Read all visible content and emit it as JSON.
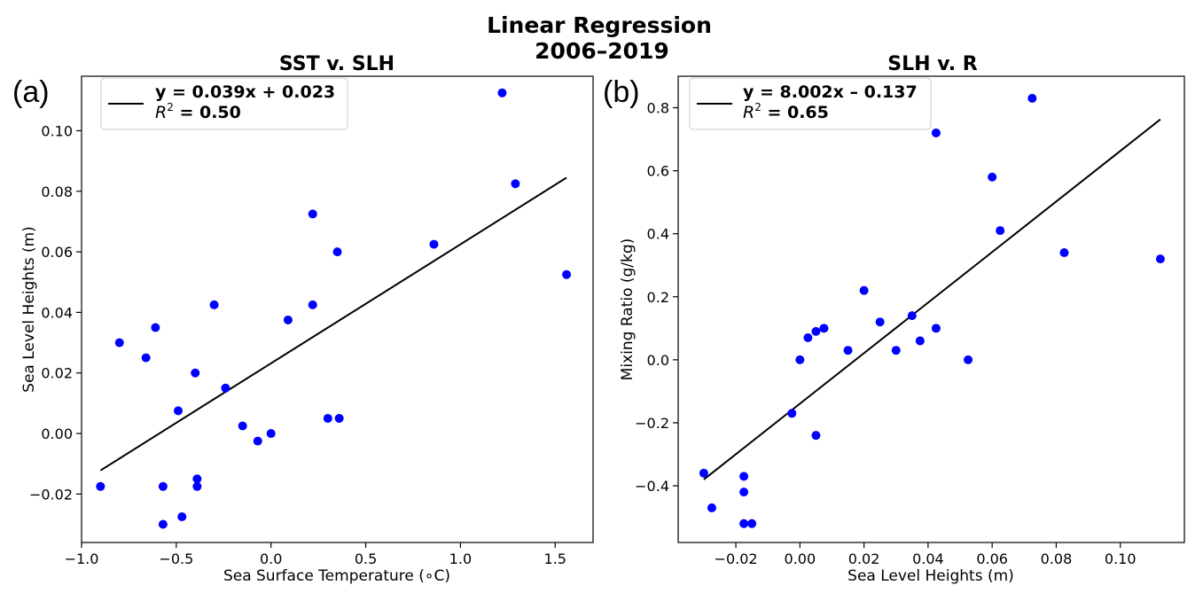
{
  "suptitle": {
    "line1": "Linear Regression",
    "line2": "2006–2019"
  },
  "colors": {
    "points": "#0000ff",
    "line": "#000000"
  },
  "chart_data": [
    {
      "type": "scatter",
      "panel_label": "(a)",
      "title": "SST v. SLH",
      "xlabel": "Sea Surface Temperature (∘C)",
      "ylabel": "Sea Level Heights (m)",
      "xlim": [
        -1.0,
        1.7
      ],
      "ylim": [
        -0.036,
        0.118
      ],
      "xticks": [
        -1.0,
        -0.5,
        0.0,
        0.5,
        1.0,
        1.5
      ],
      "xtick_labels": [
        "−1.0",
        "−0.5",
        "0.0",
        "0.5",
        "1.0",
        "1.5"
      ],
      "yticks": [
        -0.02,
        0.0,
        0.02,
        0.04,
        0.06,
        0.08,
        0.1
      ],
      "ytick_labels": [
        "−0.02",
        "0.00",
        "0.02",
        "0.04",
        "0.06",
        "0.08",
        "0.10"
      ],
      "legend": {
        "position": "top-left",
        "line1": "y = 0.039x + 0.023",
        "r2_label": "R",
        "r2_sup": "2",
        "r2_value": " = 0.50"
      },
      "fit": {
        "x": [
          -0.9,
          1.56
        ],
        "y": [
          -0.0122,
          0.0845
        ]
      },
      "points": [
        {
          "x": -0.9,
          "y": -0.0175
        },
        {
          "x": -0.8,
          "y": 0.03
        },
        {
          "x": -0.66,
          "y": 0.025
        },
        {
          "x": -0.61,
          "y": 0.035
        },
        {
          "x": -0.57,
          "y": -0.0175
        },
        {
          "x": -0.57,
          "y": -0.03
        },
        {
          "x": -0.49,
          "y": 0.0075
        },
        {
          "x": -0.47,
          "y": -0.0275
        },
        {
          "x": -0.4,
          "y": 0.02
        },
        {
          "x": -0.39,
          "y": -0.015
        },
        {
          "x": -0.39,
          "y": -0.0175
        },
        {
          "x": -0.3,
          "y": 0.0425
        },
        {
          "x": -0.24,
          "y": 0.015
        },
        {
          "x": -0.15,
          "y": 0.0025
        },
        {
          "x": -0.07,
          "y": -0.0025
        },
        {
          "x": 0.0,
          "y": 0.0
        },
        {
          "x": 0.09,
          "y": 0.0375
        },
        {
          "x": 0.22,
          "y": 0.0425
        },
        {
          "x": 0.22,
          "y": 0.0725
        },
        {
          "x": 0.3,
          "y": 0.005
        },
        {
          "x": 0.36,
          "y": 0.005
        },
        {
          "x": 0.35,
          "y": 0.06
        },
        {
          "x": 0.86,
          "y": 0.0625
        },
        {
          "x": 1.22,
          "y": 0.1125
        },
        {
          "x": 1.29,
          "y": 0.0825
        },
        {
          "x": 1.56,
          "y": 0.0525
        }
      ]
    },
    {
      "type": "scatter",
      "panel_label": "(b)",
      "title": "SLH v. R",
      "xlabel": "Sea Level Heights (m)",
      "ylabel": "Mixing Ratio (g/kg)",
      "xlim": [
        -0.038,
        0.12
      ],
      "ylim": [
        -0.58,
        0.9
      ],
      "xticks": [
        -0.02,
        0.0,
        0.02,
        0.04,
        0.06,
        0.08,
        0.1
      ],
      "xtick_labels": [
        "−0.02",
        "0.00",
        "0.02",
        "0.04",
        "0.06",
        "0.08",
        "0.10"
      ],
      "yticks": [
        -0.4,
        -0.2,
        0.0,
        0.2,
        0.4,
        0.6,
        0.8
      ],
      "ytick_labels": [
        "−0.4",
        "−0.2",
        "0.0",
        "0.2",
        "0.4",
        "0.6",
        "0.8"
      ],
      "legend": {
        "position": "top-left",
        "line1": "y = 8.002x – 0.137",
        "r2_label": "R",
        "r2_sup": "2",
        "r2_value": " = 0.65"
      },
      "fit": {
        "x": [
          -0.03,
          0.1125
        ],
        "y": [
          -0.38,
          0.763
        ]
      },
      "points": [
        {
          "x": -0.03,
          "y": -0.36
        },
        {
          "x": -0.0275,
          "y": -0.47
        },
        {
          "x": -0.0175,
          "y": -0.37
        },
        {
          "x": -0.0175,
          "y": -0.42
        },
        {
          "x": -0.0175,
          "y": -0.52
        },
        {
          "x": -0.015,
          "y": -0.52
        },
        {
          "x": -0.0025,
          "y": -0.17
        },
        {
          "x": 0.0,
          "y": 0.0
        },
        {
          "x": 0.0025,
          "y": 0.07
        },
        {
          "x": 0.005,
          "y": 0.09
        },
        {
          "x": 0.005,
          "y": -0.24
        },
        {
          "x": 0.0075,
          "y": 0.1
        },
        {
          "x": 0.015,
          "y": 0.03
        },
        {
          "x": 0.02,
          "y": 0.22
        },
        {
          "x": 0.025,
          "y": 0.12
        },
        {
          "x": 0.03,
          "y": 0.03
        },
        {
          "x": 0.035,
          "y": 0.14
        },
        {
          "x": 0.0375,
          "y": 0.06
        },
        {
          "x": 0.0425,
          "y": 0.1
        },
        {
          "x": 0.0425,
          "y": 0.72
        },
        {
          "x": 0.0525,
          "y": 0.0
        },
        {
          "x": 0.06,
          "y": 0.58
        },
        {
          "x": 0.0625,
          "y": 0.41
        },
        {
          "x": 0.0725,
          "y": 0.83
        },
        {
          "x": 0.0825,
          "y": 0.34
        },
        {
          "x": 0.1125,
          "y": 0.32
        }
      ]
    }
  ]
}
